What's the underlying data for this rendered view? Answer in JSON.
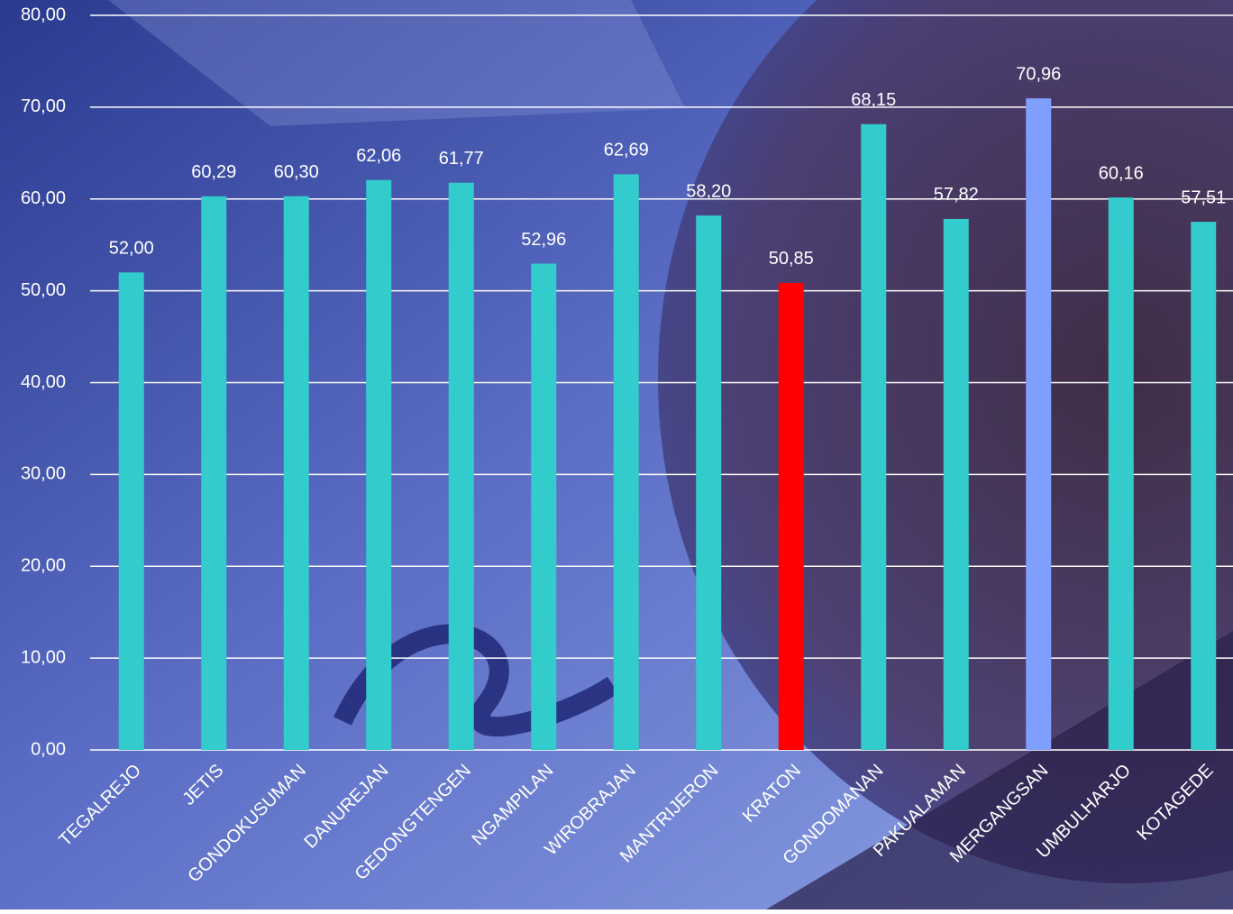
{
  "chart_data": {
    "type": "bar",
    "categories": [
      "TEGALREJO",
      "JETIS",
      "GONDOKUSUMAN",
      "DANUREJAN",
      "GEDONGTENGEN",
      "NGAMPILAN",
      "WIROBRAJAN",
      "MANTRIJERON",
      "KRATON",
      "GONDOMANAN",
      "PAKUALAMAN",
      "MERGANGSAN",
      "UMBULHARJO",
      "KOTAGEDE"
    ],
    "values": [
      52.0,
      60.29,
      60.3,
      62.06,
      61.77,
      52.96,
      62.69,
      58.2,
      50.85,
      68.15,
      57.82,
      70.96,
      60.16,
      57.51
    ],
    "value_labels": [
      "52,00",
      "60,29",
      "60,30",
      "62,06",
      "61,77",
      "52,96",
      "62,69",
      "58,20",
      "50,85",
      "68,15",
      "57,82",
      "70,96",
      "60,16",
      "57,51"
    ],
    "colors": [
      "#33cccc",
      "#33cccc",
      "#33cccc",
      "#33cccc",
      "#33cccc",
      "#33cccc",
      "#33cccc",
      "#33cccc",
      "#ff0000",
      "#33cccc",
      "#33cccc",
      "#7f9fff",
      "#33cccc",
      "#33cccc"
    ],
    "ylim": [
      0,
      80
    ],
    "yticks": [
      {
        "value": 0,
        "label": "0,00"
      },
      {
        "value": 10,
        "label": "10,00"
      },
      {
        "value": 20,
        "label": "20,00"
      },
      {
        "value": 30,
        "label": "30,00"
      },
      {
        "value": 40,
        "label": "40,00"
      },
      {
        "value": 50,
        "label": "50,00"
      },
      {
        "value": 60,
        "label": "60,00"
      },
      {
        "value": 70,
        "label": "70,00"
      },
      {
        "value": 80,
        "label": "80,00"
      }
    ],
    "grid": true
  }
}
